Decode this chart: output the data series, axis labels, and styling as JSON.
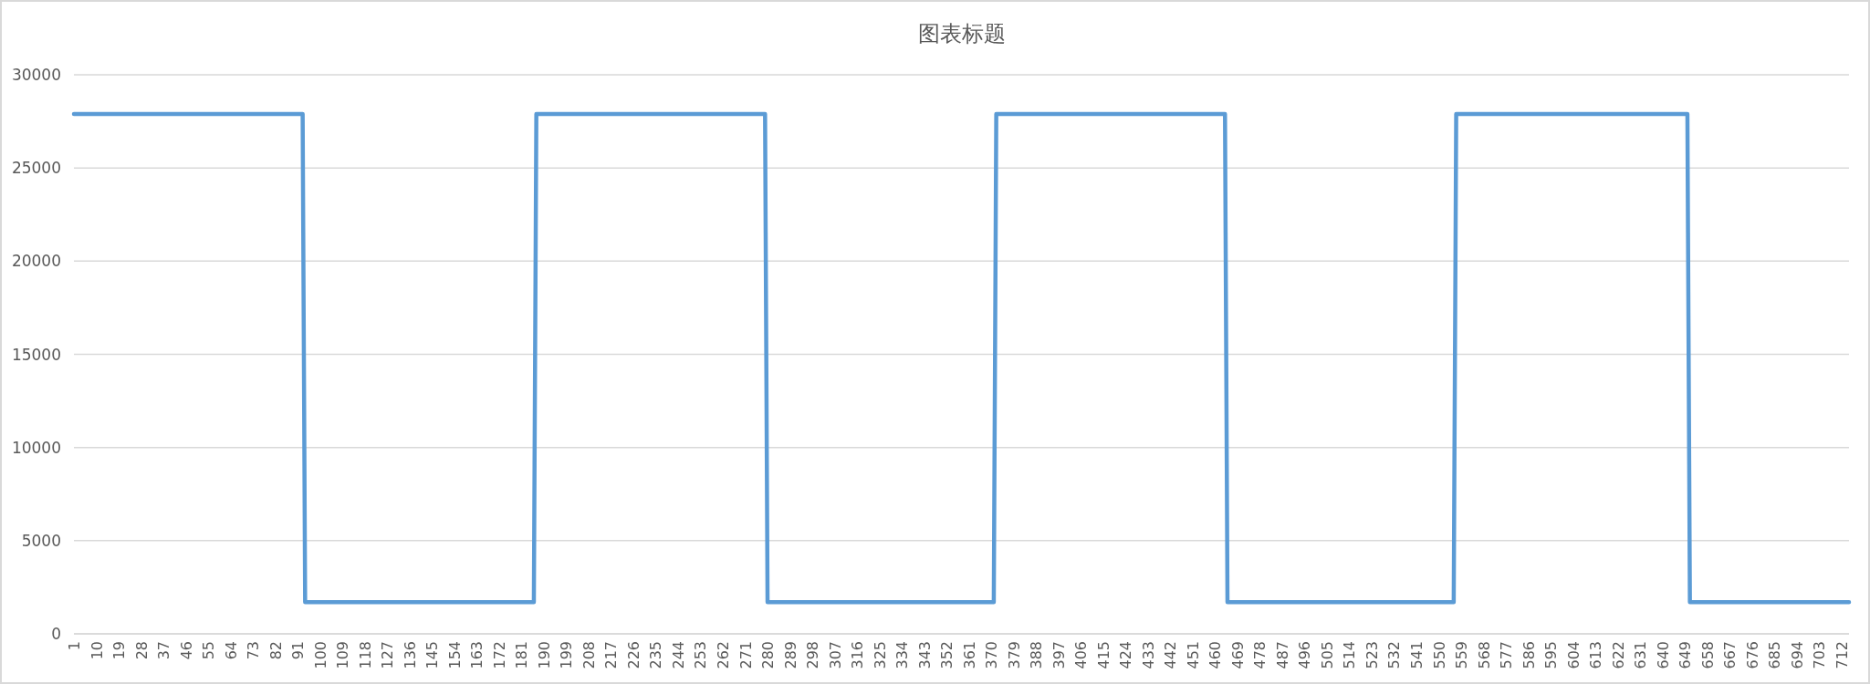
{
  "chart_data": {
    "type": "line",
    "title": "图表标题",
    "x": [
      1,
      93,
      94,
      186,
      187,
      279,
      280,
      371,
      372,
      464,
      465,
      556,
      557,
      650,
      651,
      715
    ],
    "series": [
      {
        "color": "#5b9bd5",
        "values": [
          27900,
          27900,
          1700,
          1700,
          27900,
          27900,
          1700,
          1700,
          27900,
          27900,
          1700,
          1700,
          27900,
          27900,
          1700,
          1700
        ]
      }
    ],
    "xlim": [
      1,
      715
    ],
    "xticks": [
      1,
      10,
      19,
      28,
      37,
      46,
      55,
      64,
      73,
      82,
      91,
      100,
      109,
      118,
      127,
      136,
      145,
      154,
      163,
      172,
      181,
      190,
      199,
      208,
      217,
      226,
      235,
      244,
      253,
      262,
      271,
      280,
      289,
      298,
      307,
      316,
      325,
      334,
      343,
      352,
      361,
      370,
      379,
      388,
      397,
      406,
      415,
      424,
      433,
      442,
      451,
      460,
      469,
      478,
      487,
      496,
      505,
      514,
      523,
      532,
      541,
      550,
      559,
      568,
      577,
      586,
      595,
      604,
      613,
      622,
      631,
      640,
      649,
      658,
      667,
      676,
      685,
      694,
      703,
      712
    ],
    "ylim": [
      0,
      30000
    ],
    "yticks": [
      0,
      5000,
      10000,
      15000,
      20000,
      25000,
      30000
    ],
    "grid": "y"
  }
}
